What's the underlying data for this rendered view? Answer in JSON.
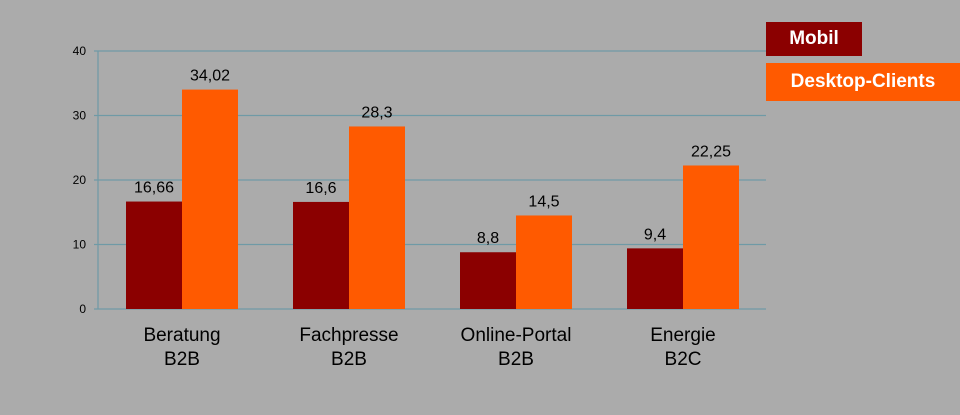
{
  "chart_data": {
    "type": "bar",
    "categories": [
      "Beratung\nB2B",
      "Fachpresse\nB2B",
      "Online-Portal\nB2B",
      "Energie\nB2C"
    ],
    "series": [
      {
        "name": "Mobil",
        "values": [
          16.66,
          16.6,
          8.8,
          9.4
        ],
        "labels": [
          "16,66",
          "16,6",
          "8,8",
          "9,4"
        ],
        "color": "#8b0000"
      },
      {
        "name": "Desktop-Clients",
        "values": [
          34.02,
          28.3,
          14.5,
          22.25
        ],
        "labels": [
          "34,02",
          "28,3",
          "14,5",
          "22,25"
        ],
        "color": "#ff5a00"
      }
    ],
    "ylim": [
      0,
      40
    ],
    "yticks": [
      0,
      10,
      20,
      30,
      40
    ],
    "grid": true,
    "legend": "top-right"
  }
}
